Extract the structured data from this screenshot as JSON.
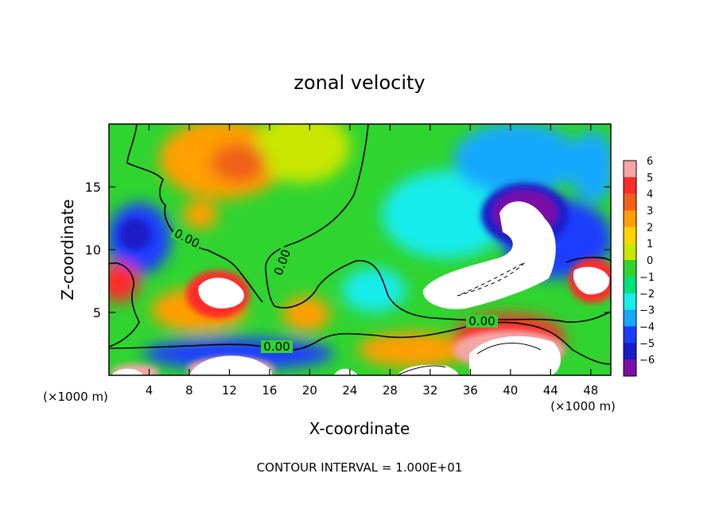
{
  "chart_data": {
    "type": "heatmap",
    "title": "zonal velocity",
    "xlabel": "X-coordinate",
    "ylabel": "Z-coordinate",
    "x_unit": "(×1000 m)",
    "xlim": [
      0,
      50
    ],
    "ylim": [
      0,
      20
    ],
    "x_ticks": [
      4,
      8,
      12,
      16,
      20,
      24,
      28,
      32,
      36,
      40,
      44,
      48
    ],
    "y_ticks": [
      5,
      10,
      15
    ],
    "colorbar": {
      "ticks": [
        6,
        5,
        4,
        3,
        2,
        1,
        0,
        -1,
        -2,
        -3,
        -4,
        -5,
        -6
      ],
      "range": [
        -6,
        6
      ],
      "colors": [
        "#f4a6a6",
        "#ff2b2b",
        "#f06018",
        "#ff9f00",
        "#ffd300",
        "#c8e600",
        "#2fd42f",
        "#00e37a",
        "#19ecec",
        "#14a8ff",
        "#1a3cff",
        "#1a1ac8",
        "#7a10a8"
      ]
    },
    "contour_labels": [
      "0.00",
      "0.00",
      "0.00",
      "0.00"
    ],
    "footer": "CONTOUR INTERVAL = 1.000E+01"
  }
}
